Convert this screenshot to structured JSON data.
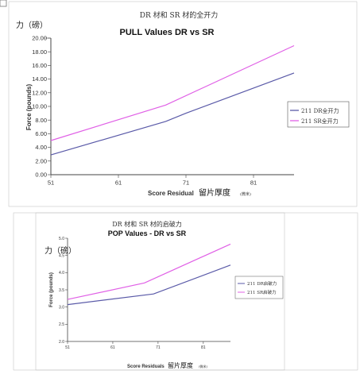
{
  "chart_data": [
    {
      "type": "line",
      "caption": "DR 材和 SR 材的全开力",
      "title": "PULL Values DR vs SR",
      "ylabel": "Force (pounds)",
      "ylabel_cn": "力（磅）",
      "xlabel": "Score Residual",
      "xlabel_cn": "留片厚度",
      "xlabel_unit": "(微米)",
      "x_ticks": [
        "51",
        "61",
        "71",
        "81"
      ],
      "y_ticks": [
        "0.00",
        "2.00",
        "4.00",
        "6.00",
        "8.00",
        "10.00",
        "12.00",
        "14.00",
        "16.00",
        "18.00",
        "20.00"
      ],
      "xlim": [
        51,
        87
      ],
      "ylim": [
        0,
        20
      ],
      "legend_position": "right",
      "grid": false,
      "series": [
        {
          "name": "211 DR全开力",
          "color": "#5a5aa8",
          "x": [
            51,
            68,
            71,
            87
          ],
          "y": [
            2.9,
            7.8,
            9.0,
            14.9
          ]
        },
        {
          "name": "211 SR全开力",
          "color": "#e060e6",
          "x": [
            51,
            68,
            87
          ],
          "y": [
            5.0,
            10.2,
            18.9
          ]
        }
      ]
    },
    {
      "type": "line",
      "caption": "DR 材和 SR 材的启破力",
      "title": "POP Values - DR vs SR",
      "ylabel": "Force (pounds)",
      "ylabel_cn": "力（磅）",
      "xlabel": "Score Residuals",
      "xlabel_cn": "留片厚度",
      "xlabel_unit": "(微米)",
      "x_ticks": [
        "51",
        "61",
        "71",
        "81"
      ],
      "y_ticks": [
        "2.0",
        "2.5",
        "3.0",
        "3.5",
        "4.0",
        "4.5",
        "5.0"
      ],
      "xlim": [
        51,
        87
      ],
      "ylim": [
        2.0,
        5.0
      ],
      "legend_position": "right",
      "grid": false,
      "series": [
        {
          "name": "211 DR启破力",
          "color": "#5a5aa8",
          "x": [
            51,
            70,
            87
          ],
          "y": [
            3.07,
            3.38,
            4.22
          ]
        },
        {
          "name": "211 SR启破力",
          "color": "#e060e6",
          "x": [
            51,
            68,
            87
          ],
          "y": [
            3.22,
            3.7,
            4.83
          ]
        }
      ]
    }
  ]
}
